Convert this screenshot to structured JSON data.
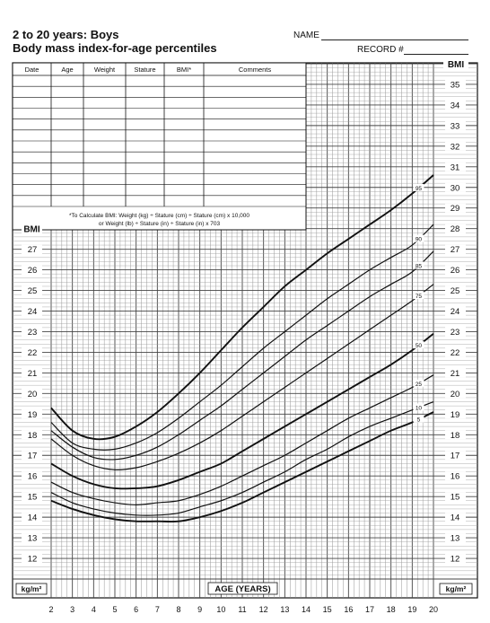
{
  "header": {
    "title_line1": "2 to 20 years: Boys",
    "title_line2": "Body mass index-for-age percentiles",
    "name_label": "NAME",
    "record_label": "RECORD #"
  },
  "record_table": {
    "columns": [
      "Date",
      "Age",
      "Weight",
      "Stature",
      "BMI*",
      "Comments"
    ],
    "row_count": 12,
    "formula_line1": "*To Calculate BMI: Weight (kg) ÷ Stature (cm) ÷ Stature (cm) x 10,000",
    "formula_line2": "or Weight (lb) ÷ Stature (in) ÷ Stature (in) x 703"
  },
  "chart_data": {
    "type": "line",
    "xlabel": "AGE (YEARS)",
    "ylabel": "BMI",
    "unit_label": "kg/m²",
    "xlim": [
      2,
      20
    ],
    "ylim": [
      11,
      36
    ],
    "x_ticks": [
      2,
      3,
      4,
      5,
      6,
      7,
      8,
      9,
      10,
      11,
      12,
      13,
      14,
      15,
      16,
      17,
      18,
      19,
      20
    ],
    "y_ticks_left": [
      12,
      13,
      14,
      15,
      16,
      17,
      18,
      19,
      20,
      21,
      22,
      23,
      24,
      25,
      26,
      27
    ],
    "y_ticks_right": [
      12,
      13,
      14,
      15,
      16,
      17,
      18,
      19,
      20,
      21,
      22,
      23,
      24,
      25,
      26,
      27,
      28,
      29,
      30,
      31,
      32,
      33,
      34,
      35
    ],
    "grid": true,
    "x": [
      2,
      3,
      4,
      5,
      6,
      7,
      8,
      9,
      10,
      11,
      12,
      13,
      14,
      15,
      16,
      17,
      18,
      19,
      20
    ],
    "series": [
      {
        "name": "95",
        "values": [
          19.3,
          18.2,
          17.8,
          17.9,
          18.4,
          19.1,
          20.0,
          21.0,
          22.1,
          23.2,
          24.2,
          25.2,
          26.0,
          26.8,
          27.5,
          28.2,
          28.9,
          29.7,
          30.6
        ]
      },
      {
        "name": "90",
        "values": [
          18.6,
          17.6,
          17.3,
          17.3,
          17.6,
          18.1,
          18.8,
          19.6,
          20.4,
          21.3,
          22.2,
          23.0,
          23.8,
          24.6,
          25.3,
          26.0,
          26.6,
          27.2,
          28.2
        ]
      },
      {
        "name": "85",
        "values": [
          18.2,
          17.4,
          16.9,
          16.8,
          17.0,
          17.4,
          18.0,
          18.7,
          19.4,
          20.2,
          21.0,
          21.8,
          22.6,
          23.3,
          24.0,
          24.7,
          25.3,
          25.9,
          26.9
        ]
      },
      {
        "name": "75",
        "values": [
          17.8,
          17.0,
          16.5,
          16.3,
          16.4,
          16.7,
          17.1,
          17.6,
          18.2,
          18.9,
          19.6,
          20.3,
          21.0,
          21.7,
          22.4,
          23.1,
          23.8,
          24.5,
          25.3
        ]
      },
      {
        "name": "50",
        "values": [
          16.6,
          16.0,
          15.6,
          15.4,
          15.4,
          15.5,
          15.8,
          16.2,
          16.6,
          17.2,
          17.8,
          18.4,
          19.0,
          19.6,
          20.2,
          20.8,
          21.4,
          22.1,
          22.9
        ]
      },
      {
        "name": "25",
        "values": [
          15.7,
          15.2,
          14.9,
          14.7,
          14.6,
          14.7,
          14.8,
          15.1,
          15.5,
          16.0,
          16.5,
          17.0,
          17.6,
          18.2,
          18.8,
          19.3,
          19.8,
          20.3,
          20.9
        ]
      },
      {
        "name": "10",
        "values": [
          15.2,
          14.7,
          14.4,
          14.2,
          14.1,
          14.1,
          14.2,
          14.5,
          14.8,
          15.2,
          15.7,
          16.2,
          16.8,
          17.3,
          17.9,
          18.4,
          18.8,
          19.2,
          19.6
        ]
      },
      {
        "name": "5",
        "values": [
          14.8,
          14.4,
          14.1,
          13.9,
          13.8,
          13.8,
          13.8,
          14.0,
          14.3,
          14.7,
          15.2,
          15.7,
          16.2,
          16.7,
          17.2,
          17.7,
          18.2,
          18.6,
          19.1
        ]
      }
    ]
  }
}
